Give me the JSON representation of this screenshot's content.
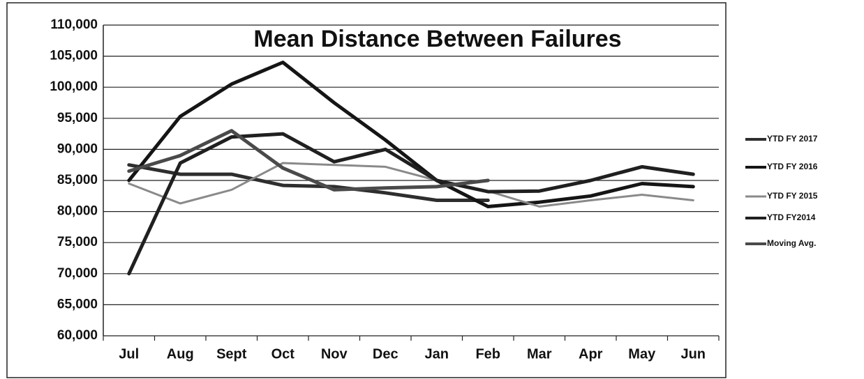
{
  "chart_data": {
    "type": "line",
    "title": "Mean Distance Between Failures",
    "categories": [
      "Jul",
      "Aug",
      "Sept",
      "Oct",
      "Nov",
      "Dec",
      "Jan",
      "Feb",
      "Mar",
      "Apr",
      "May",
      "Jun"
    ],
    "series": [
      {
        "name": "YTD FY 2017",
        "color": "#2e2e2e",
        "values": [
          87500,
          86000,
          86000,
          84200,
          84000,
          83000,
          81800,
          81800,
          null,
          null,
          null,
          null
        ]
      },
      {
        "name": "YTD FY 2016",
        "color": "#151515",
        "values": [
          85000,
          95300,
          100500,
          104000,
          97500,
          91500,
          85000,
          80800,
          81500,
          82500,
          84500,
          84000
        ]
      },
      {
        "name": "YTD FY 2015",
        "color": "#8a8a8a",
        "values": [
          84500,
          81300,
          83500,
          87800,
          87500,
          87200,
          85000,
          83300,
          80800,
          81800,
          82700,
          81800
        ]
      },
      {
        "name": "YTD FY2014",
        "color": "#202020",
        "values": [
          70000,
          87800,
          92000,
          92500,
          88000,
          90000,
          85000,
          83200,
          83300,
          85000,
          87200,
          86000
        ]
      },
      {
        "name": "Moving Avg.",
        "color": "#4a4a4a",
        "values": [
          86500,
          89000,
          93000,
          87000,
          83500,
          83800,
          84000,
          85000,
          null,
          null,
          null,
          null
        ]
      }
    ],
    "ylim": [
      60000,
      110000
    ],
    "yticks": [
      {
        "value": 60000,
        "label": "60,000"
      },
      {
        "value": 65000,
        "label": "65,000"
      },
      {
        "value": 70000,
        "label": "70,000"
      },
      {
        "value": 75000,
        "label": "75,000"
      },
      {
        "value": 80000,
        "label": "80,000"
      },
      {
        "value": 85000,
        "label": "85,000"
      },
      {
        "value": 90000,
        "label": "90,000"
      },
      {
        "value": 95000,
        "label": "95,000"
      },
      {
        "value": 100000,
        "label": "100,000"
      },
      {
        "value": 105000,
        "label": "105,000"
      },
      {
        "value": 110000,
        "label": "110,000"
      }
    ],
    "grid": true,
    "legend": "right"
  }
}
